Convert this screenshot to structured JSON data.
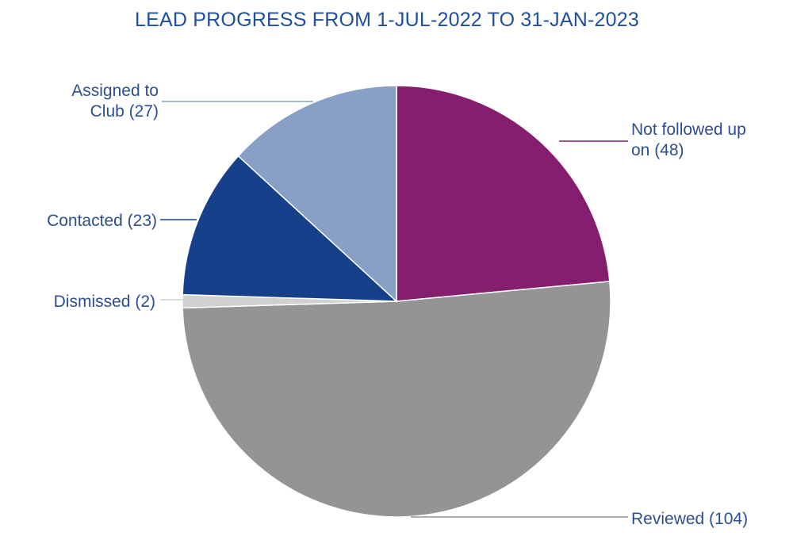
{
  "chart_data": {
    "type": "pie",
    "title": "LEAD PROGRESS FROM 1-JUL-2022 TO 31-JAN-2023",
    "slices": [
      {
        "name": "Not followed up on",
        "value": 48,
        "color": "#861e6f",
        "label_lines": [
          "Not followed up",
          "on (48)"
        ]
      },
      {
        "name": "Reviewed",
        "value": 104,
        "color": "#939494",
        "label_lines": [
          "Reviewed (104)"
        ]
      },
      {
        "name": "Dismissed",
        "value": 2,
        "color": "#cfd0d0",
        "label_lines": [
          "Dismissed (2)"
        ]
      },
      {
        "name": "Contacted",
        "value": 23,
        "color": "#17408b",
        "label_lines": [
          "Contacted (23)"
        ]
      },
      {
        "name": "Assigned to Club",
        "value": 27,
        "color": "#88a0c6",
        "label_lines": [
          "Assigned to",
          "Club (27)"
        ]
      }
    ],
    "start_angle": "12 o'clock",
    "direction": "clockwise",
    "legend": "none",
    "label_style": "external labels with leader lines"
  }
}
